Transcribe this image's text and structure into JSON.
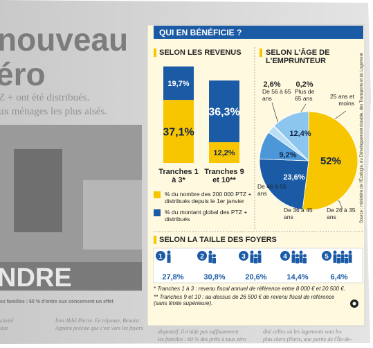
{
  "background_article": {
    "headline_lines": [
      "nouveau",
      "éro"
    ],
    "deck_lines": [
      "Z + ont été distribués.",
      "ux ménages les plus aisés."
    ],
    "photo_sign": "NDRE",
    "caption": "es familles : 60 % d'entre eux concernent un effet",
    "column_fragments": [
      [
        "ctivité",
        "itez"
      ],
      [
        "lion Abbé Pierre. En réponse, Benoist",
        "Apparu précise que c'est vers les foyers"
      ],
      [
        "dispositif, il n'aide pas suffisamment",
        "les familles : 60 % des prêts à taux zéro"
      ],
      [
        "dité celles où les logements sont les",
        "plus chers (Paris, une partie de l'Île-de-"
      ]
    ]
  },
  "panel": {
    "title": "QUI EN BÉNÉFICIE ?",
    "source": "Source : ministère de l'Écologie, du Développement durable, des Transports et du Logement",
    "footnotes": [
      "* Tranches 1 à 3 : revenu fiscal annuel de référence entre 8 000 € et 20 500 €.",
      "** Tranches 9 et 10 : au-dessus de 26 500 € de revenu fiscal de référence (sans limite supérieure)."
    ]
  },
  "chart_data": [
    {
      "type": "bar",
      "stacked": true,
      "title": "SELON LES REVENUS",
      "categories": [
        "Tranches 1 à 3*",
        "Tranches 9 et 10**"
      ],
      "series": [
        {
          "name": "% du nombre des 200 000 PTZ + distribués depuis le 1er janvier",
          "color": "#f7c600",
          "values": [
            37.1,
            12.2
          ],
          "value_labels": [
            "37,1%",
            "12,2%"
          ]
        },
        {
          "name": "% du montant global des PTZ + distribués",
          "color": "#1b5aa5",
          "values": [
            19.7,
            36.3
          ],
          "value_labels": [
            "19,7%",
            "36,3%"
          ]
        }
      ]
    },
    {
      "type": "pie",
      "title": "SELON L'ÂGE DE L'EMPRUNTEUR",
      "categories": [
        "De 26 à 35 ans",
        "De 36 à 45 ans",
        "De 46 à 55 ans",
        "De 56 à 65 ans",
        "Plus de 65 ans",
        "25 ans et moins"
      ],
      "values": [
        52,
        23.6,
        9.2,
        2.6,
        0.2,
        12.4
      ],
      "value_labels": [
        "52%",
        "23,6%",
        "9,2%",
        "2,6%",
        "0,2%",
        "12,4%"
      ],
      "colors": [
        "#f7c600",
        "#1b5aa5",
        "#4b97d8",
        "#b9def5",
        "#dcf0fc",
        "#8cc6ee"
      ]
    }
  ],
  "household_size": {
    "title": "SELON LA TAILLE DES FOYERS",
    "items": [
      {
        "size": "1",
        "share": "27,8%"
      },
      {
        "size": "2",
        "share": "30,8%"
      },
      {
        "size": "3",
        "share": "20,6%"
      },
      {
        "size": "4",
        "share": "14,4%"
      },
      {
        "size": "5",
        "share": "6,4%"
      }
    ]
  }
}
